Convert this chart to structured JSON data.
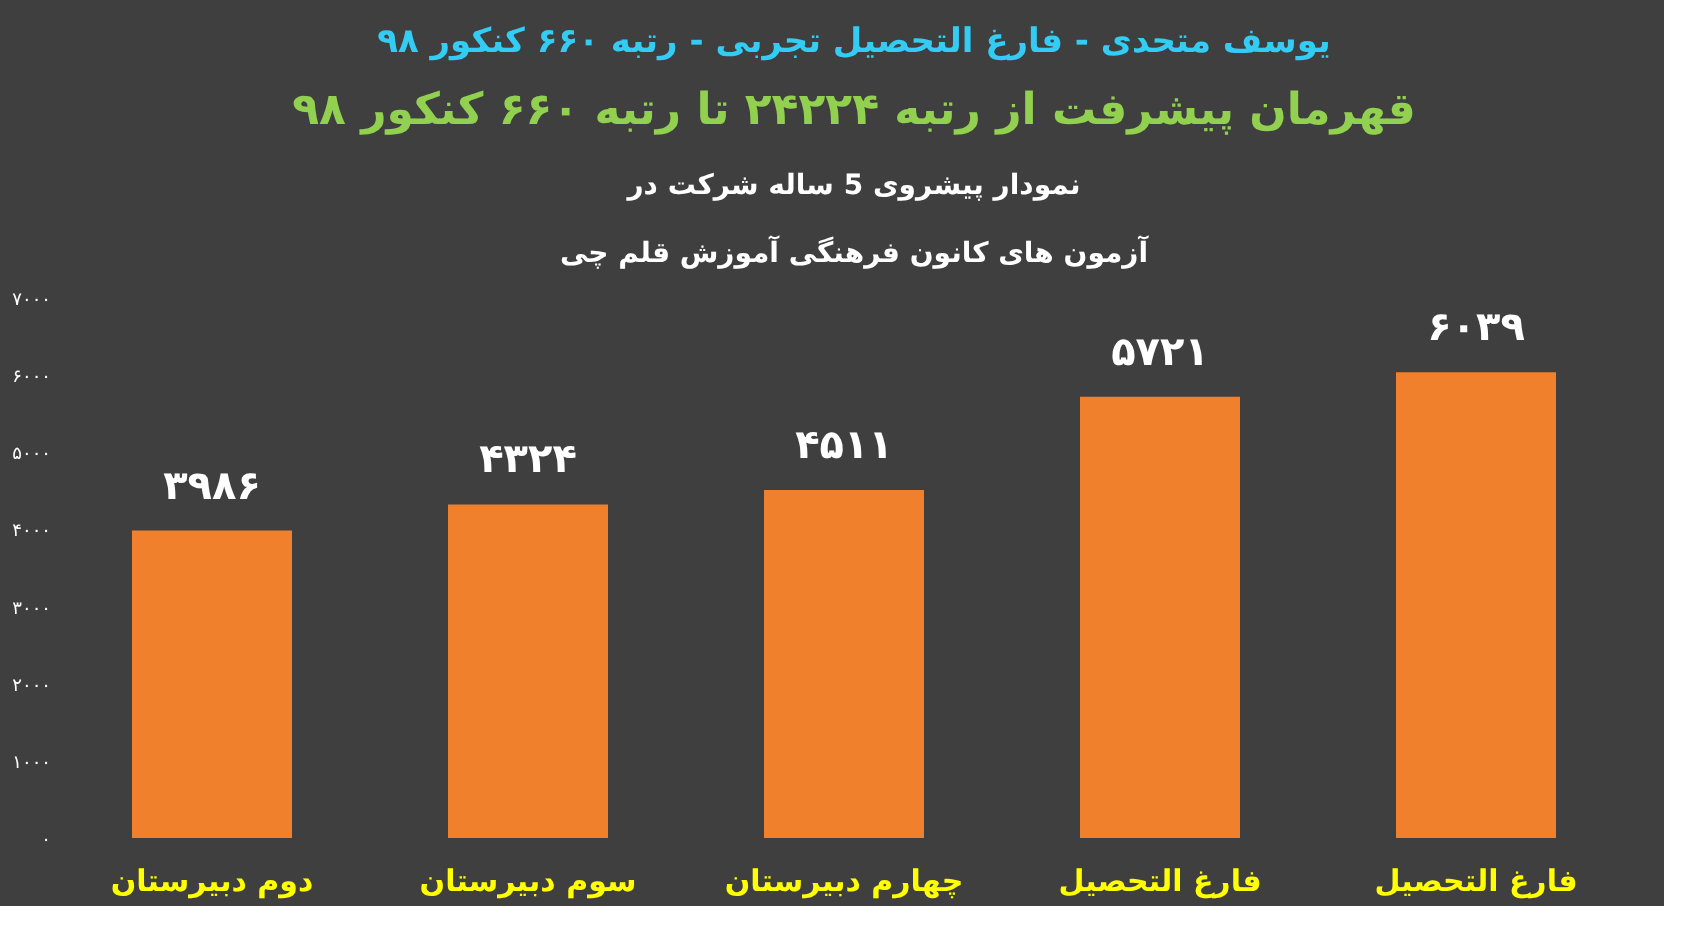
{
  "chart_data": {
    "type": "bar",
    "title": "یوسف متحدی - فارغ التحصیل تجربی - رتبه ۶۶۰ کنکور ۹۸",
    "subtitle": "قهرمان پیشرفت از رتبه ۲۴۲۲۴ تا رتبه ۶۶۰ کنکور ۹۸",
    "annotations": [
      "نمودار پیشروی 5 ساله شرکت در",
      "آزمون های کانون فرهنگی آموزش قلم چی"
    ],
    "categories": [
      "دوم دبیرستان",
      "سوم دبیرستان",
      "چهارم دبیرستان",
      "فارغ التحصیل",
      "فارغ التحصیل"
    ],
    "values": [
      3986,
      4324,
      4511,
      5721,
      6039
    ],
    "value_labels": [
      "۳۹۸۶",
      "۴۳۲۴",
      "۴۵۱۱",
      "۵۷۲۱",
      "۶۰۳۹"
    ],
    "color": "#f0802c",
    "ylim": [
      0,
      7000
    ],
    "yticks": [
      {
        "value": 0,
        "label": "۰"
      },
      {
        "value": 1000,
        "label": "۱۰۰۰"
      },
      {
        "value": 2000,
        "label": "۲۰۰۰"
      },
      {
        "value": 3000,
        "label": "۳۰۰۰"
      },
      {
        "value": 4000,
        "label": "۴۰۰۰"
      },
      {
        "value": 5000,
        "label": "۵۰۰۰"
      },
      {
        "value": 6000,
        "label": "۶۰۰۰"
      },
      {
        "value": 7000,
        "label": "۷۰۰۰"
      }
    ],
    "grid": false
  }
}
